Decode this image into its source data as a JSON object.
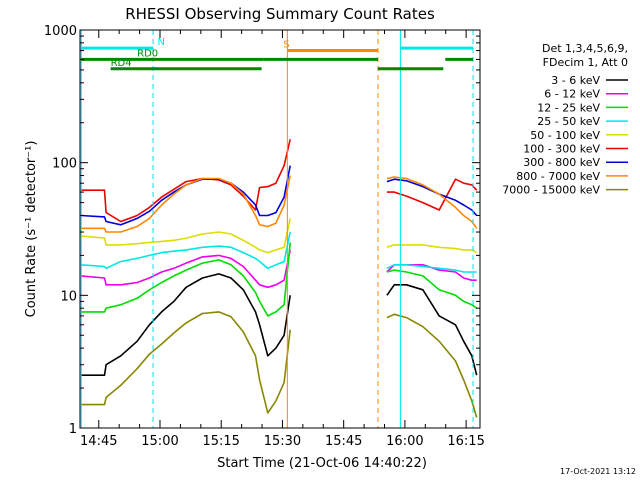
{
  "chart_data": {
    "type": "line",
    "title": "RHESSI Observing Summary Count Rates",
    "ylabel": "Count Rate (s⁻¹ detector⁻¹)",
    "xlabel": "Start Time (21-Oct-06 14:40:22)",
    "footer_date": "17-Oct-2021 13:12",
    "ylog": true,
    "ylim": [
      1,
      1000
    ],
    "xlim_minutes": [
      0,
      98
    ],
    "y_ticks": [
      "1",
      "10",
      "100",
      "1000"
    ],
    "x_ticks": [
      {
        "t": 4.6,
        "label": "14:45"
      },
      {
        "t": 19.6,
        "label": "15:00"
      },
      {
        "t": 34.6,
        "label": "15:15"
      },
      {
        "t": 49.6,
        "label": "15:30"
      },
      {
        "t": 64.6,
        "label": "15:45"
      },
      {
        "t": 79.6,
        "label": "16:00"
      },
      {
        "t": 94.6,
        "label": "16:15"
      }
    ],
    "legend": {
      "header": [
        "Det 1,3,4,5,6,9,",
        "FDecim 1, Att 0"
      ],
      "entries": [
        {
          "label": "3 - 6 keV",
          "color": "#000000"
        },
        {
          "label": "6 - 12 keV",
          "color": "#ee00ee"
        },
        {
          "label": "12 - 25 keV",
          "color": "#00dd00"
        },
        {
          "label": "25 - 50 keV",
          "color": "#00e6e6"
        },
        {
          "label": "50 - 100 keV",
          "color": "#dddd00"
        },
        {
          "label": "100 - 300 keV",
          "color": "#ee0000"
        },
        {
          "label": "300 - 800 keV",
          "color": "#0000dd"
        },
        {
          "label": "800 - 7000 keV",
          "color": "#ff8800"
        },
        {
          "label": "7000 - 15000 keV",
          "color": "#888800"
        }
      ]
    },
    "data_gap_minutes": [
      51.5,
      75.2
    ],
    "vertical_lines": [
      {
        "t": 0.3,
        "color": "#00e6e6",
        "style": "solid"
      },
      {
        "t": 17.9,
        "color": "#00e6e6",
        "style": "dash"
      },
      {
        "t": 50.8,
        "color": "#ff8800",
        "style": "solid"
      },
      {
        "t": 73.0,
        "color": "#ff8800",
        "style": "dash"
      },
      {
        "t": 78.5,
        "color": "#00e6e6",
        "style": "solid"
      },
      {
        "t": 96.3,
        "color": "#00e6e6",
        "style": "dash"
      }
    ],
    "flag_bars": [
      {
        "label": "N",
        "color": "#00e6e6",
        "y": 730,
        "segments": [
          [
            0.3,
            17.9
          ],
          [
            78.5,
            96.3
          ]
        ],
        "label_t": 19.0
      },
      {
        "label": "S",
        "color": "#ff8800",
        "y": 700,
        "segments": [
          [
            50.8,
            73.0
          ]
        ],
        "label_t": 49.8
      },
      {
        "label": "RD0",
        "color": "#008800",
        "y": 600,
        "segments": [
          [
            0.3,
            45.0
          ],
          [
            45.0,
            73.0
          ],
          [
            89.5,
            96.3
          ]
        ],
        "label_t": 14.0
      },
      {
        "label": "RD4",
        "color": "#008800",
        "y": 510,
        "segments": [
          [
            7.5,
            44.5
          ],
          [
            73.0,
            89.0
          ]
        ],
        "label_t": 7.5
      }
    ],
    "series": [
      {
        "name": "3 - 6 keV",
        "color": "#000000",
        "x": [
          0.3,
          6,
          6.4,
          10,
          14,
          17,
          20,
          23,
          26,
          30,
          34,
          37,
          40,
          43,
          44,
          46,
          48,
          50,
          51.5,
          75.2,
          77,
          80,
          84,
          88,
          92,
          94,
          96,
          97.2
        ],
        "y": [
          2.5,
          2.5,
          3.0,
          3.5,
          4.5,
          6,
          7.5,
          9,
          11.5,
          13.5,
          14.5,
          13.5,
          11,
          7.5,
          6,
          3.5,
          4,
          5,
          10,
          10,
          12,
          12,
          11,
          7,
          6,
          4.5,
          3.5,
          2.5
        ]
      },
      {
        "name": "6 - 12 keV",
        "color": "#ee00ee",
        "x": [
          0.3,
          6,
          6.4,
          10,
          14,
          17,
          20,
          23,
          26,
          30,
          34,
          37,
          40,
          43,
          44,
          46,
          48,
          50,
          51.5,
          75.2,
          77,
          80,
          84,
          88,
          92,
          94,
          96,
          97.2
        ],
        "y": [
          14,
          13.5,
          12,
          12,
          12.5,
          13.5,
          15,
          16,
          17.5,
          19.5,
          20,
          19,
          16.5,
          13,
          12,
          11.5,
          12,
          13,
          22,
          15,
          17,
          17,
          17,
          15.5,
          15,
          13.5,
          13,
          13
        ]
      },
      {
        "name": "12 - 25 keV",
        "color": "#00dd00",
        "x": [
          0.3,
          6,
          6.4,
          10,
          14,
          17,
          20,
          23,
          26,
          30,
          34,
          37,
          40,
          43,
          44,
          46,
          48,
          50,
          51.5,
          75.2,
          77,
          80,
          84,
          88,
          92,
          94,
          96,
          97.2
        ],
        "y": [
          7.5,
          7.5,
          8,
          8.5,
          9.5,
          11,
          12.5,
          14,
          15.5,
          17.5,
          18.5,
          17,
          14,
          10.5,
          9,
          7,
          7.5,
          8.5,
          25,
          15,
          15.5,
          15,
          14,
          11,
          10,
          9,
          8.5,
          8
        ]
      },
      {
        "name": "25 - 50 keV",
        "color": "#00e6e6",
        "x": [
          0.3,
          6,
          6.4,
          10,
          14,
          17,
          20,
          23,
          26,
          30,
          34,
          37,
          40,
          43,
          44,
          46,
          48,
          50,
          51.5,
          75.2,
          77,
          80,
          84,
          88,
          92,
          94,
          96,
          97.2
        ],
        "y": [
          17,
          16.5,
          16,
          18,
          19,
          20,
          21,
          21.5,
          22,
          23,
          23.5,
          23,
          21,
          19,
          18,
          16,
          17,
          18,
          30,
          16,
          17,
          17,
          16.5,
          16,
          15.5,
          15,
          15,
          15
        ]
      },
      {
        "name": "50 - 100 keV",
        "color": "#dddd00",
        "x": [
          0.3,
          6,
          6.4,
          10,
          14,
          17,
          20,
          23,
          26,
          30,
          34,
          37,
          40,
          43,
          44,
          46,
          48,
          50,
          51.5,
          75.2,
          77,
          80,
          84,
          88,
          92,
          94,
          96,
          97.2
        ],
        "y": [
          28,
          27,
          24,
          24,
          24.5,
          25,
          25.5,
          26,
          27,
          29,
          30,
          29,
          26,
          23,
          22,
          21,
          22,
          23,
          38,
          23,
          24,
          24,
          24,
          23,
          22.5,
          22,
          22,
          21
        ]
      },
      {
        "name": "100 - 300 keV",
        "color": "#ee0000",
        "x": [
          0.3,
          6,
          6.4,
          10,
          14,
          17,
          20,
          23,
          26,
          30,
          34,
          37,
          40,
          43,
          44,
          46,
          48,
          50,
          51.5,
          75.2,
          77,
          80,
          84,
          88,
          92,
          94,
          96,
          97.2
        ],
        "y": [
          62,
          62,
          42,
          36,
          40,
          46,
          55,
          63,
          72,
          76,
          74,
          68,
          56,
          44,
          65,
          66,
          70,
          95,
          150,
          60,
          60,
          56,
          50,
          44,
          75,
          70,
          68,
          62
        ]
      },
      {
        "name": "300 - 800 keV",
        "color": "#0000dd",
        "x": [
          0.3,
          6,
          6.4,
          10,
          14,
          17,
          20,
          23,
          26,
          30,
          34,
          37,
          40,
          43,
          44,
          46,
          48,
          50,
          51.5,
          75.2,
          77,
          80,
          84,
          88,
          92,
          94,
          96,
          97.2
        ],
        "y": [
          40,
          39,
          36,
          34,
          38,
          43,
          52,
          60,
          68,
          75,
          75,
          70,
          60,
          48,
          40,
          40,
          42,
          55,
          95,
          72,
          75,
          73,
          66,
          58,
          52,
          48,
          44,
          40
        ]
      },
      {
        "name": "800 - 7000 keV",
        "color": "#ff8800",
        "x": [
          0.3,
          6,
          6.4,
          10,
          14,
          17,
          20,
          23,
          26,
          30,
          34,
          37,
          40,
          43,
          44,
          46,
          48,
          50,
          51.5,
          75.2,
          77,
          80,
          84,
          88,
          92,
          94,
          96,
          97.2
        ],
        "y": [
          32,
          32,
          30,
          30,
          33,
          38,
          48,
          58,
          68,
          76,
          76,
          70,
          58,
          40,
          34,
          33,
          35,
          48,
          80,
          76,
          78,
          76,
          68,
          58,
          46,
          40,
          36,
          32
        ]
      },
      {
        "name": "7000 - 15000 keV",
        "color": "#888800",
        "x": [
          0.3,
          6,
          6.4,
          10,
          14,
          17,
          20,
          23,
          26,
          30,
          34,
          37,
          40,
          43,
          44,
          46,
          48,
          50,
          51.5,
          75.2,
          77,
          80,
          84,
          88,
          92,
          94,
          96,
          97.2
        ],
        "y": [
          1.5,
          1.5,
          1.7,
          2.1,
          2.8,
          3.6,
          4.3,
          5.2,
          6.2,
          7.3,
          7.5,
          6.9,
          5.3,
          3.5,
          2.3,
          1.3,
          1.6,
          2.2,
          5.5,
          6.8,
          7.2,
          6.8,
          5.8,
          4.5,
          3.2,
          2.3,
          1.6,
          1.2
        ]
      }
    ]
  }
}
